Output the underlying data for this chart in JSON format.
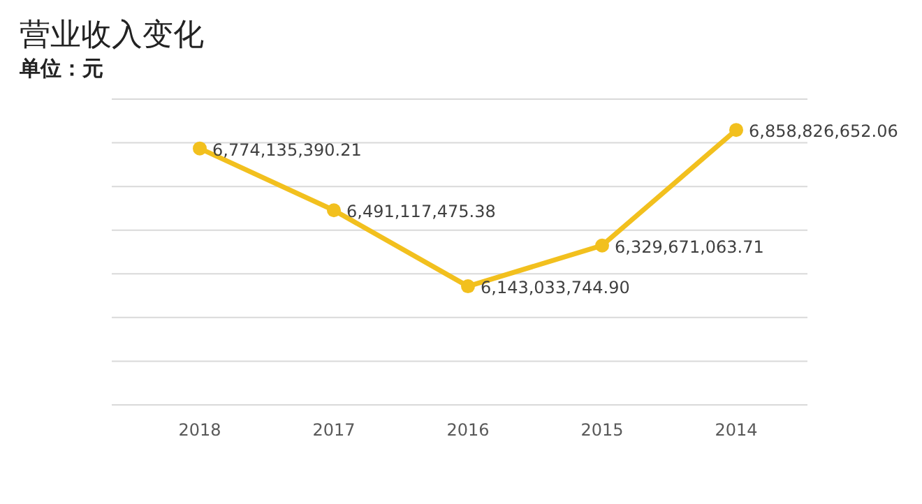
{
  "chart_data": {
    "type": "line",
    "title": "营业收入变化",
    "subtitle": "单位：元",
    "categories": [
      "2018",
      "2017",
      "2016",
      "2015",
      "2014"
    ],
    "series": [
      {
        "color": "#f2c01e",
        "values": [
          6774135390.21,
          6491117475.38,
          6143033744.9,
          6329671063.71,
          6858826652.06
        ],
        "value_labels": [
          "6,774,135,390.21",
          "6,491,117,475.38",
          "6,143,033,744.90",
          "6,329,671,063.71",
          "6,858,826,652.06"
        ]
      }
    ],
    "ylim": [
      5600000000,
      7000000000
    ],
    "yticks": [
      {
        "value": 5600000000,
        "label": null
      },
      {
        "value": 5800000000,
        "label": null
      },
      {
        "value": 6000000000,
        "label": null
      },
      {
        "value": 6200000000,
        "label": null
      },
      {
        "value": 6400000000,
        "label": null
      },
      {
        "value": 6600000000,
        "label": null
      },
      {
        "value": 6800000000,
        "label": null
      },
      {
        "value": 7000000000,
        "label": null
      }
    ],
    "tick_labels": "x",
    "grid": "y",
    "marker": "circle",
    "line_style": "solid"
  }
}
